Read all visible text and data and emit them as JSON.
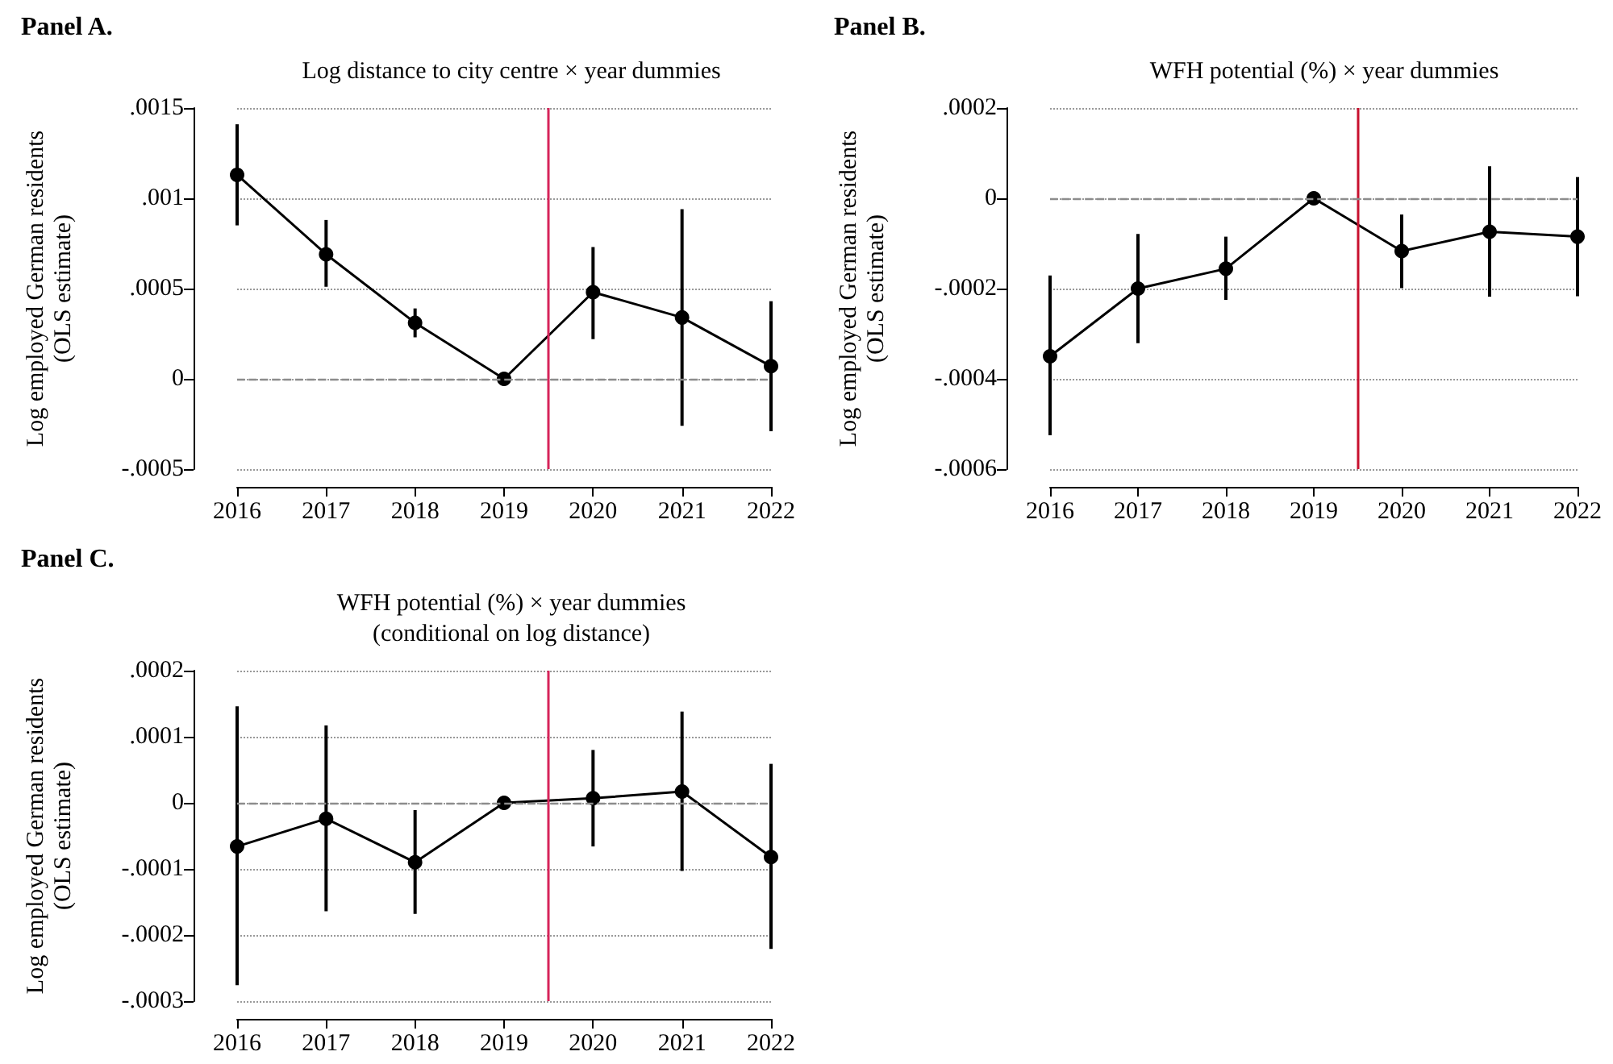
{
  "chart_data": [
    {
      "type": "line",
      "title": "Panel A.",
      "subtitle": "Log distance to city centre × year dummies",
      "ylabel": "Log employed German residents\n(OLS estimate)",
      "x": [
        2016,
        2017,
        2018,
        2019,
        2020,
        2021,
        2022
      ],
      "xlim": [
        2016,
        2022
      ],
      "xticks": [
        2016,
        2017,
        2018,
        2019,
        2020,
        2021,
        2022
      ],
      "ylim": [
        -0.0005,
        0.0015
      ],
      "yticks": [
        {
          "value": -0.0005,
          "label": "-.0005"
        },
        {
          "value": 0,
          "label": "0"
        },
        {
          "value": 0.0005,
          "label": ".0005"
        },
        {
          "value": 0.001,
          "label": ".001"
        },
        {
          "value": 0.0015,
          "label": ".0015"
        }
      ],
      "series": [
        {
          "color": "#000000",
          "values": [
            0.00113,
            0.00069,
            0.00031,
            0,
            0.00048,
            0.00034,
            7e-05
          ],
          "errors": [
            [
              0.00085,
              0.00141
            ],
            [
              0.00051,
              0.00088
            ],
            [
              0.00023,
              0.00039
            ],
            null,
            [
              0.00022,
              0.00073
            ],
            [
              -0.00026,
              0.00094
            ],
            [
              -0.00029,
              0.00043
            ]
          ]
        }
      ],
      "ref_lines": [
        {
          "axis": "x",
          "value": 2019.5,
          "color": "#d6245a",
          "line_style": "solid"
        },
        {
          "axis": "y",
          "value": 0,
          "color": "#8c8c8c",
          "line_style": "dashed"
        }
      ],
      "grid": "y",
      "marker": "circle",
      "line_style": "solid"
    },
    {
      "type": "line",
      "title": "Panel B.",
      "subtitle": "WFH potential (%) × year dummies",
      "ylabel": "Log employed German residents\n(OLS estimate)",
      "x": [
        2016,
        2017,
        2018,
        2019,
        2020,
        2021,
        2022
      ],
      "xlim": [
        2016,
        2022
      ],
      "xticks": [
        2016,
        2017,
        2018,
        2019,
        2020,
        2021,
        2022
      ],
      "ylim": [
        -0.0006,
        0.0002
      ],
      "yticks": [
        {
          "value": -0.0006,
          "label": "-.0006"
        },
        {
          "value": -0.0004,
          "label": "-.0004"
        },
        {
          "value": -0.0002,
          "label": "-.0002"
        },
        {
          "value": 0,
          "label": "0"
        },
        {
          "value": 0.0002,
          "label": ".0002"
        }
      ],
      "series": [
        {
          "color": "#000000",
          "values": [
            -0.00035,
            -0.0002,
            -0.000156,
            0,
            -0.000117,
            -7.4e-05,
            -8.5e-05
          ],
          "errors": [
            [
              -0.000525,
              -0.000171
            ],
            [
              -0.000321,
              -7.9e-05
            ],
            [
              -0.000225,
              -8.5e-05
            ],
            null,
            [
              -0.000199,
              -3.6e-05
            ],
            [
              -0.000218,
              7.1e-05
            ],
            [
              -0.000217,
              4.7e-05
            ]
          ]
        }
      ],
      "ref_lines": [
        {
          "axis": "x",
          "value": 2019.5,
          "color": "#c8102e",
          "line_style": "solid"
        },
        {
          "axis": "y",
          "value": 0,
          "color": "#8c8c8c",
          "line_style": "dashed"
        }
      ],
      "grid": "y",
      "marker": "circle",
      "line_style": "solid"
    },
    {
      "type": "line",
      "title": "Panel C.",
      "subtitle": "WFH potential (%) × year dummies\n(conditional on log distance)",
      "ylabel": "Log employed German residents\n(OLS estimate)",
      "x": [
        2016,
        2017,
        2018,
        2019,
        2020,
        2021,
        2022
      ],
      "xlim": [
        2016,
        2022
      ],
      "xticks": [
        2016,
        2017,
        2018,
        2019,
        2020,
        2021,
        2022
      ],
      "ylim": [
        -0.0003,
        0.0002
      ],
      "yticks": [
        {
          "value": -0.0003,
          "label": "-.0003"
        },
        {
          "value": -0.0002,
          "label": "-.0002"
        },
        {
          "value": -0.0001,
          "label": "-.0001"
        },
        {
          "value": 0,
          "label": "0"
        },
        {
          "value": 0.0001,
          "label": ".0001"
        },
        {
          "value": 0.0002,
          "label": ".0002"
        }
      ],
      "series": [
        {
          "color": "#000000",
          "values": [
            -6.6e-05,
            -2.4e-05,
            -9e-05,
            0,
            7e-06,
            1.7e-05,
            -8.2e-05
          ],
          "errors": [
            [
              -0.000276,
              0.000146
            ],
            [
              -0.000164,
              0.000117
            ],
            [
              -0.000168,
              -1.1e-05
            ],
            null,
            [
              -6.6e-05,
              8e-05
            ],
            [
              -0.000103,
              0.000138
            ],
            [
              -0.000221,
              5.9e-05
            ]
          ]
        }
      ],
      "ref_lines": [
        {
          "axis": "x",
          "value": 2019.5,
          "color": "#d6245a",
          "line_style": "solid"
        },
        {
          "axis": "y",
          "value": 0,
          "color": "#8c8c8c",
          "line_style": "dashed"
        }
      ],
      "grid": "y",
      "marker": "circle",
      "line_style": "solid"
    }
  ]
}
